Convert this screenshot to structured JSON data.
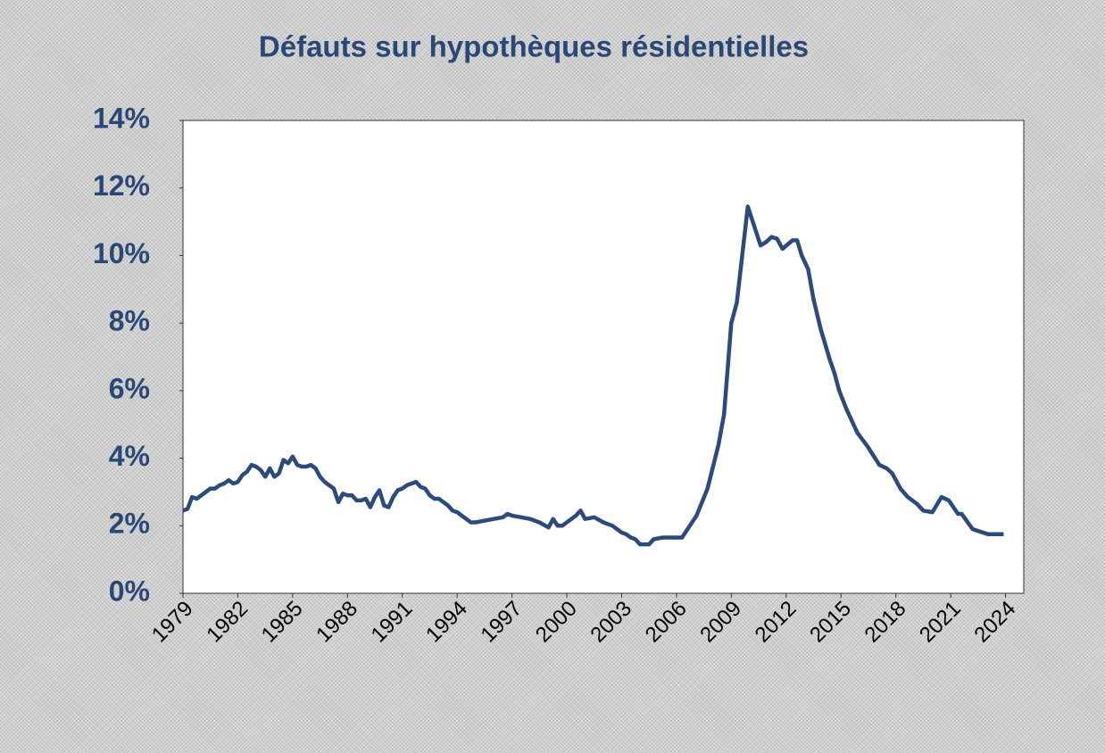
{
  "chart_data": {
    "type": "line",
    "title": "Défauts sur hypothèques résidentielles",
    "x": [
      1979,
      1979.25,
      1979.5,
      1979.75,
      1980,
      1980.25,
      1980.5,
      1980.75,
      1981,
      1981.25,
      1981.5,
      1981.75,
      1982,
      1982.25,
      1982.5,
      1982.75,
      1983,
      1983.25,
      1983.5,
      1983.75,
      1984,
      1984.25,
      1984.5,
      1984.75,
      1985,
      1985.25,
      1985.5,
      1985.75,
      1986,
      1986.25,
      1986.5,
      1986.75,
      1987,
      1987.25,
      1987.5,
      1987.75,
      1988,
      1988.25,
      1988.5,
      1988.75,
      1989,
      1989.25,
      1989.5,
      1989.75,
      1990,
      1990.25,
      1990.5,
      1990.75,
      1991,
      1991.25,
      1991.5,
      1991.75,
      1992,
      1992.25,
      1992.5,
      1992.75,
      1993,
      1993.25,
      1993.5,
      1993.75,
      1994,
      1994.25,
      1994.5,
      1994.75,
      1995,
      1995.5,
      1996,
      1996.5,
      1996.75,
      1997,
      1997.5,
      1998,
      1998.25,
      1998.5,
      1999,
      1999.25,
      1999.5,
      1999.75,
      2000,
      2000.5,
      2000.75,
      2001,
      2001.5,
      2002,
      2002.5,
      2003,
      2003.25,
      2003.5,
      2003.75,
      2004,
      2004.5,
      2004.75,
      2005.25,
      2005.75,
      2006.3,
      2007.1,
      2007.7,
      2008.3,
      2008.6,
      2009,
      2009.3,
      2009.9,
      2010.6,
      2010.9,
      2011.2,
      2011.5,
      2011.8,
      2012.35,
      2012.6,
      2012.85,
      2013.2,
      2013.5,
      2013.9,
      2014.4,
      2014.65,
      2014.9,
      2015.3,
      2015.6,
      2015.9,
      2016.45,
      2017.1,
      2017.5,
      2017.8,
      2018.25,
      2018.65,
      2019.15,
      2019.5,
      2020,
      2020.5,
      2020.9,
      2021.4,
      2021.6,
      2022.2,
      2023.05,
      2023.9
    ],
    "series": [
      {
        "name": "Défauts",
        "color": "#2c4a7c",
        "values": [
          2.45,
          2.5,
          2.85,
          2.8,
          2.9,
          3.0,
          3.1,
          3.1,
          3.2,
          3.25,
          3.35,
          3.25,
          3.3,
          3.5,
          3.6,
          3.8,
          3.75,
          3.65,
          3.45,
          3.7,
          3.45,
          3.55,
          3.95,
          3.85,
          4.05,
          3.8,
          3.75,
          3.75,
          3.8,
          3.7,
          3.45,
          3.3,
          3.2,
          3.1,
          2.7,
          2.95,
          2.9,
          2.9,
          2.75,
          2.75,
          2.8,
          2.55,
          2.85,
          3.05,
          2.6,
          2.55,
          2.85,
          3.05,
          3.1,
          3.2,
          3.25,
          3.3,
          3.15,
          3.1,
          2.9,
          2.8,
          2.8,
          2.7,
          2.6,
          2.45,
          2.4,
          2.3,
          2.2,
          2.1,
          2.1,
          2.15,
          2.2,
          2.25,
          2.35,
          2.3,
          2.25,
          2.2,
          2.15,
          2.1,
          1.95,
          2.2,
          2.0,
          2.0,
          2.1,
          2.3,
          2.45,
          2.2,
          2.25,
          2.1,
          2.0,
          1.8,
          1.75,
          1.65,
          1.6,
          1.45,
          1.45,
          1.6,
          1.65,
          1.65,
          1.65,
          2.3,
          3.1,
          4.4,
          5.3,
          8.0,
          8.6,
          11.45,
          10.3,
          10.4,
          10.55,
          10.5,
          10.2,
          10.45,
          10.45,
          10.0,
          9.6,
          8.7,
          7.8,
          6.9,
          6.5,
          6.0,
          5.45,
          5.1,
          4.75,
          4.35,
          3.8,
          3.7,
          3.55,
          3.1,
          2.85,
          2.65,
          2.45,
          2.4,
          2.85,
          2.75,
          2.35,
          2.35,
          1.9,
          1.75,
          1.75
        ]
      }
    ],
    "xlim": [
      1979,
      2025
    ],
    "xticks": [
      1979,
      1982,
      1985,
      1988,
      1991,
      1994,
      1997,
      2000,
      2003,
      2006,
      2009,
      2012,
      2015,
      2018,
      2021,
      2024
    ],
    "ylim": [
      0,
      14
    ],
    "yticks": [
      {
        "value": 0,
        "label": "0%"
      },
      {
        "value": 2,
        "label": "2%"
      },
      {
        "value": 4,
        "label": "4%"
      },
      {
        "value": 6,
        "label": "6%"
      },
      {
        "value": 8,
        "label": "8%"
      },
      {
        "value": 10,
        "label": "10%"
      },
      {
        "value": 12,
        "label": "12%"
      },
      {
        "value": 14,
        "label": "14%"
      }
    ]
  }
}
